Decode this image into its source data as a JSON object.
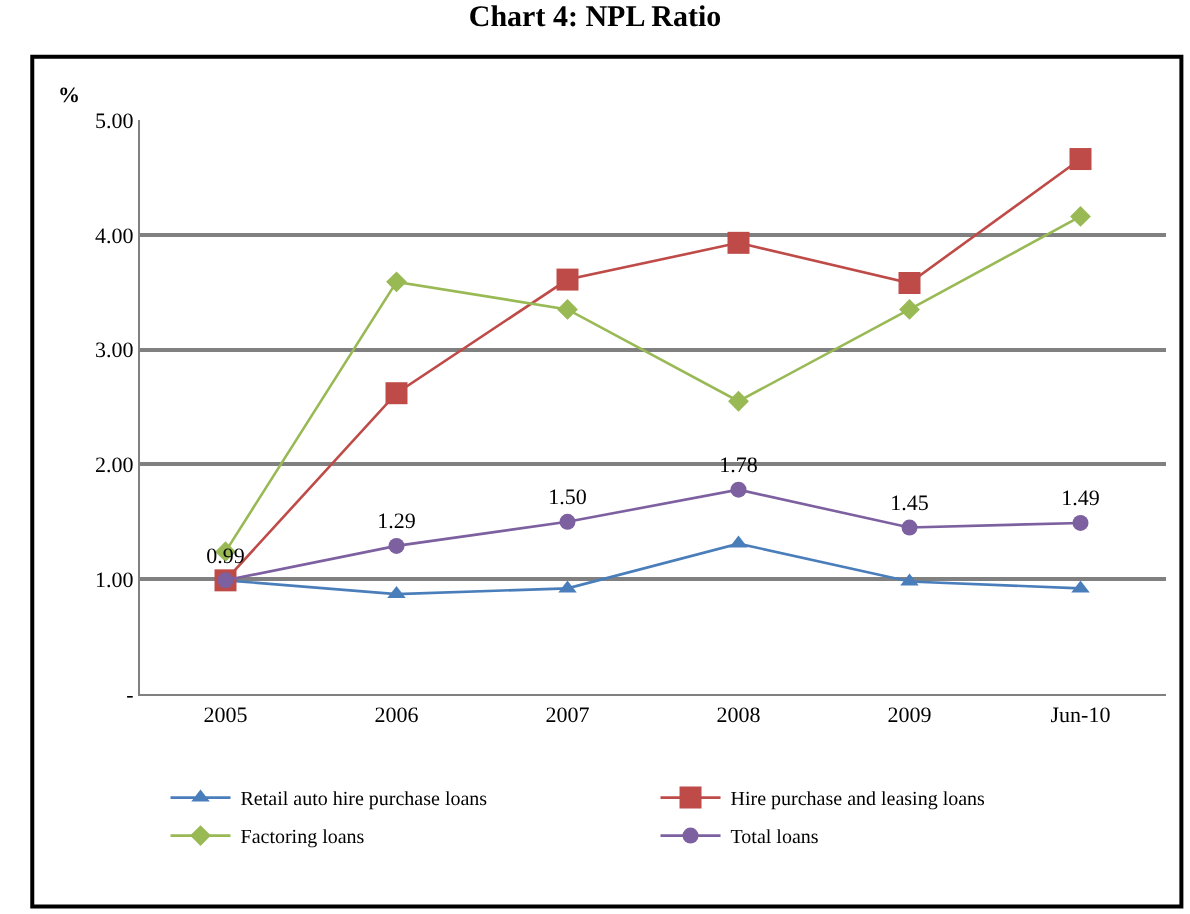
{
  "chart_data": {
    "type": "line",
    "title": "Chart 4: NPL Ratio",
    "ylabel": "%",
    "categories": [
      "2005",
      "2006",
      "2007",
      "2008",
      "2009",
      "Jun-10"
    ],
    "ylim": [
      0,
      5
    ],
    "yticks": [
      {
        "value": 0,
        "label": "-"
      },
      {
        "value": 1,
        "label": "1.00"
      },
      {
        "value": 2,
        "label": "2.00"
      },
      {
        "value": 3,
        "label": "3.00"
      },
      {
        "value": 4,
        "label": "4.00"
      },
      {
        "value": 5,
        "label": "5.00"
      }
    ],
    "grid": "y",
    "legend": "bottom",
    "series": [
      {
        "name": "Retail auto hire purchase loans",
        "color": "#4a7ebb",
        "marker": "triangle",
        "values": [
          0.99,
          0.87,
          0.92,
          1.31,
          0.98,
          0.92
        ]
      },
      {
        "name": "Hire purchase and leasing loans",
        "color": "#be4b48",
        "marker": "square",
        "values": [
          0.99,
          2.62,
          3.61,
          3.93,
          3.58,
          4.66
        ]
      },
      {
        "name": "Factoring loans",
        "color": "#98b954",
        "marker": "diamond",
        "values": [
          1.24,
          3.59,
          3.35,
          2.55,
          3.35,
          4.16
        ]
      },
      {
        "name": "Total loans",
        "color": "#7d60a0",
        "marker": "circle",
        "values": [
          0.99,
          1.29,
          1.5,
          1.78,
          1.45,
          1.49
        ],
        "value_labels": [
          "0.99",
          "1.29",
          "1.50",
          "1.78",
          "1.45",
          "1.49"
        ]
      }
    ]
  }
}
